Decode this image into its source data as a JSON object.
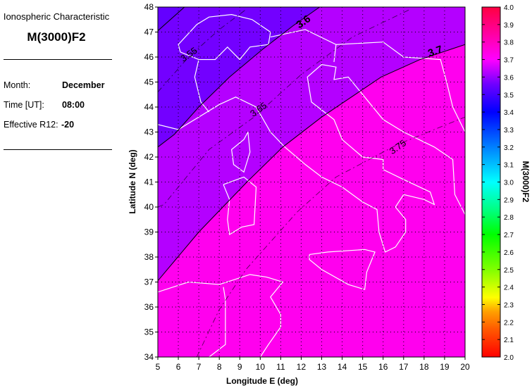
{
  "info": {
    "subtitle": "Ionospheric Characteristic",
    "title": "M(3000)F2",
    "month_label": "Month:",
    "month_value": "December",
    "time_label": "Time [UT]:",
    "time_value": "08:00",
    "r12_label": "Effective R12:",
    "r12_value": "-20"
  },
  "chart_data": {
    "type": "contour",
    "xlabel": "Longitude E (deg)",
    "ylabel": "Latitude N (deg)",
    "xlim": [
      5,
      20
    ],
    "ylim": [
      34,
      48
    ],
    "xticks": [
      "5",
      "6",
      "7",
      "8",
      "9",
      "10",
      "11",
      "12",
      "13",
      "14",
      "15",
      "16",
      "17",
      "18",
      "19",
      "20"
    ],
    "yticks": [
      "34",
      "35",
      "36",
      "37",
      "38",
      "39",
      "40",
      "41",
      "42",
      "43",
      "44",
      "45",
      "46",
      "47",
      "48"
    ],
    "grid": true,
    "colorbar": {
      "label": "M(3000)F2",
      "range": [
        2.0,
        4.0
      ],
      "ticks": [
        "2.0",
        "2.1",
        "2.2",
        "2.3",
        "2.4",
        "2.5",
        "2.6",
        "2.7",
        "2.8",
        "2.9",
        "3.0",
        "3.1",
        "3.2",
        "3.3",
        "3.4",
        "3.5",
        "3.6",
        "3.7",
        "3.8",
        "3.9",
        "4.0"
      ],
      "colors": [
        "#ff0000",
        "#ff5a00",
        "#ffa000",
        "#ffff00",
        "#80ff00",
        "#00ff00",
        "#00ff80",
        "#00ffff",
        "#0080ff",
        "#0000ff",
        "#7000ff",
        "#ff00ff",
        "#ff0040"
      ]
    },
    "fills": {
      "below_3.5": "#6400ff",
      "3.5_3.6": "#7300ff",
      "3.6_3.7": "#b400ff",
      "above_3.7": "#ff00ee"
    },
    "contours": [
      {
        "level": 3.5,
        "label": "",
        "style": "solid",
        "points": [
          [
            5,
            47.05
          ],
          [
            6.3,
            48
          ]
        ]
      },
      {
        "level": 3.55,
        "label": "3.55",
        "style": "dashed",
        "points": [
          [
            5,
            44.6
          ],
          [
            6.5,
            46.0
          ],
          [
            8,
            47.1
          ],
          [
            9.3,
            47.9
          ]
        ]
      },
      {
        "level": 3.6,
        "label": "3.6",
        "style": "solid",
        "points": [
          [
            5,
            42.4
          ],
          [
            5.8,
            42.9
          ],
          [
            7,
            44
          ],
          [
            8.5,
            45.2
          ],
          [
            10.1,
            46.3
          ],
          [
            11.6,
            47.25
          ],
          [
            12.9,
            48
          ]
        ]
      },
      {
        "level": 3.65,
        "label": "3.65",
        "style": "dashed",
        "points": [
          [
            5,
            40.0
          ],
          [
            5.3,
            40.1
          ],
          [
            7.5,
            42.3
          ],
          [
            9.7,
            43.6
          ],
          [
            12,
            45.3
          ],
          [
            14.5,
            46.8
          ],
          [
            17.3,
            47.9
          ]
        ]
      },
      {
        "level": 3.7,
        "label": "3.7",
        "style": "solid",
        "points": [
          [
            5,
            37.05
          ],
          [
            7,
            39
          ],
          [
            9.35,
            41
          ],
          [
            11.1,
            42.4
          ],
          [
            13,
            43.6
          ],
          [
            15.9,
            45.2
          ],
          [
            17.8,
            45.9
          ],
          [
            20,
            46.5
          ]
        ]
      },
      {
        "level": 3.75,
        "label": "3.75",
        "style": "dashed",
        "points": [
          [
            6.9,
            34
          ],
          [
            8,
            35.9
          ],
          [
            9.3,
            37.5
          ],
          [
            11.8,
            39.8
          ],
          [
            13.7,
            41.2
          ],
          [
            16.7,
            42.5
          ],
          [
            20,
            43.6
          ]
        ]
      }
    ]
  }
}
